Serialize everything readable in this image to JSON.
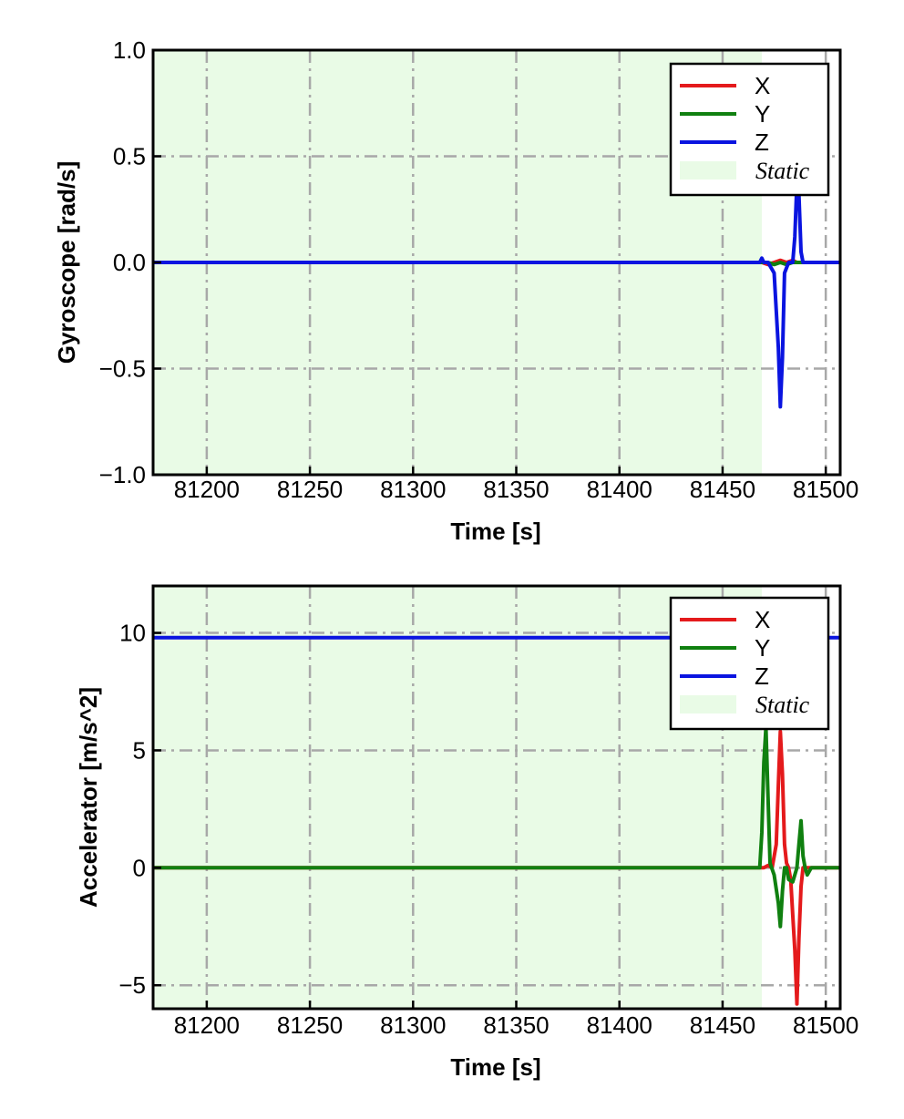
{
  "chart_data": [
    {
      "type": "line",
      "title": "",
      "xlabel": "Time [s]",
      "ylabel": "Gyroscope [rad/s]",
      "xlim": [
        81174,
        81507
      ],
      "ylim": [
        -1.0,
        1.0
      ],
      "xticks": [
        81200,
        81250,
        81300,
        81350,
        81400,
        81450,
        81500
      ],
      "xtick_labels": [
        "81200",
        "81250",
        "81300",
        "81350",
        "81400",
        "81450",
        "81500"
      ],
      "yticks": [
        -1.0,
        -0.5,
        0.0,
        0.5,
        1.0
      ],
      "ytick_labels": [
        "−1.0",
        "−0.5",
        "0.0",
        "0.5",
        "1.0"
      ],
      "grid": true,
      "legend_position": "top-right",
      "static_region": [
        81174,
        81469
      ],
      "static_label": "Static",
      "series": [
        {
          "name": "X",
          "color": "#e41a1c",
          "x": [
            81174,
            81469,
            81472,
            81475,
            81478,
            81481,
            81484,
            81486,
            81488,
            81490,
            81507
          ],
          "y": [
            0.0,
            0.0,
            -0.01,
            0.0,
            0.01,
            0.0,
            0.01,
            0.0,
            0.0,
            0.0,
            0.0
          ]
        },
        {
          "name": "Y",
          "color": "#108010",
          "x": [
            81174,
            81469,
            81472,
            81475,
            81478,
            81481,
            81484,
            81486,
            81488,
            81490,
            81507
          ],
          "y": [
            0.0,
            0.0,
            0.0,
            -0.01,
            0.0,
            -0.01,
            0.0,
            0.0,
            0.0,
            0.0,
            0.0
          ]
        },
        {
          "name": "Z",
          "color": "#0a14e0",
          "x": [
            81174,
            81468,
            81469,
            81470,
            81472,
            81475,
            81477,
            81478,
            81479,
            81480,
            81482,
            81484,
            81485,
            81486,
            81487,
            81488,
            81489,
            81492,
            81507
          ],
          "y": [
            0.0,
            0.0,
            0.02,
            0.0,
            0.0,
            -0.05,
            -0.4,
            -0.68,
            -0.45,
            -0.05,
            0.0,
            0.0,
            0.12,
            0.38,
            0.32,
            0.05,
            0.0,
            0.0,
            0.0
          ]
        }
      ]
    },
    {
      "type": "line",
      "title": "",
      "xlabel": "Time [s]",
      "ylabel": "Accelerator [m/s^2]",
      "xlim": [
        81174,
        81507
      ],
      "ylim": [
        -6.0,
        12.0
      ],
      "xticks": [
        81200,
        81250,
        81300,
        81350,
        81400,
        81450,
        81500
      ],
      "xtick_labels": [
        "81200",
        "81250",
        "81300",
        "81350",
        "81400",
        "81450",
        "81500"
      ],
      "yticks": [
        -5,
        0,
        5,
        10
      ],
      "ytick_labels": [
        "−5",
        "0",
        "5",
        "10"
      ],
      "grid": true,
      "legend_position": "top-right",
      "static_region": [
        81174,
        81469
      ],
      "static_label": "Static",
      "series": [
        {
          "name": "X",
          "color": "#e41a1c",
          "x": [
            81174,
            81470,
            81472,
            81474,
            81476,
            81477,
            81478,
            81479,
            81480,
            81481,
            81482,
            81483,
            81484,
            81485,
            81486,
            81487,
            81488,
            81489,
            81490,
            81492,
            81507
          ],
          "y": [
            0.0,
            0.0,
            0.1,
            0.0,
            1.0,
            3.5,
            5.8,
            4.0,
            1.0,
            0.2,
            0.0,
            -0.5,
            -2.0,
            -3.5,
            -5.8,
            -3.0,
            -0.8,
            0.0,
            0.0,
            0.0,
            0.0
          ]
        },
        {
          "name": "Y",
          "color": "#108010",
          "x": [
            81174,
            81468,
            81469,
            81470,
            81471,
            81472,
            81473,
            81475,
            81477,
            81478,
            81479,
            81480,
            81481,
            81482,
            81484,
            81486,
            81487,
            81488,
            81489,
            81490,
            81491,
            81493,
            81507
          ],
          "y": [
            0.0,
            0.0,
            1.5,
            4.5,
            6.0,
            3.0,
            0.2,
            -0.3,
            -1.5,
            -2.5,
            -1.0,
            0.0,
            0.0,
            -0.5,
            -0.6,
            0.0,
            1.0,
            2.0,
            0.5,
            0.0,
            -0.3,
            0.0,
            0.0
          ]
        },
        {
          "name": "Z",
          "color": "#0a14e0",
          "x": [
            81174,
            81507
          ],
          "y": [
            9.8,
            9.8
          ]
        }
      ]
    }
  ]
}
